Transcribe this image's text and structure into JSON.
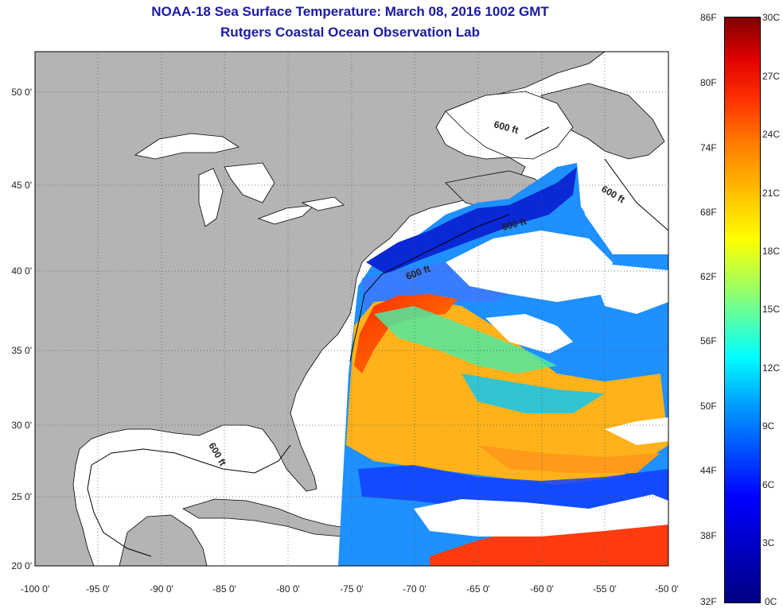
{
  "header": {
    "title": "NOAA-18 Sea Surface Temperature:  March 08, 2016 1002 GMT",
    "subtitle": "Rutgers Coastal Ocean Observation Lab"
  },
  "map": {
    "lon_range": [
      -100,
      -50
    ],
    "lat_range": [
      20,
      52.5
    ],
    "lon_ticks": [
      "-100 0'",
      "-95 0'",
      "-90 0'",
      "-85 0'",
      "-80 0'",
      "-75 0'",
      "-70 0'",
      "-65 0'",
      "-60 0'",
      "-55 0'",
      "-50 0'"
    ],
    "lat_ticks": [
      "50 0'",
      "45 0'",
      "40 0'",
      "35 0'",
      "30 0'",
      "25 0'",
      "20 0'"
    ],
    "grid": "dotted",
    "land_color": "#b4b4b4",
    "cloud_color": "#ffffff",
    "isobath_label": "600 ft",
    "isobath_labels": [
      "600 ft",
      "600 ft",
      "600 ft",
      "600 ft",
      "600 ft"
    ]
  },
  "colorbar": {
    "fahrenheit": [
      "86F",
      "80F",
      "74F",
      "68F",
      "62F",
      "56F",
      "50F",
      "44F",
      "38F",
      "32F"
    ],
    "celsius": [
      "30C",
      "27C",
      "24C",
      "21C",
      "18C",
      "15C",
      "12C",
      "9C",
      "6C",
      "3C",
      "0C"
    ],
    "colors": [
      "#000080",
      "#0000ff",
      "#00a0ff",
      "#00ffff",
      "#a0ff60",
      "#ffff00",
      "#ff8000",
      "#ff0000",
      "#800000"
    ]
  }
}
